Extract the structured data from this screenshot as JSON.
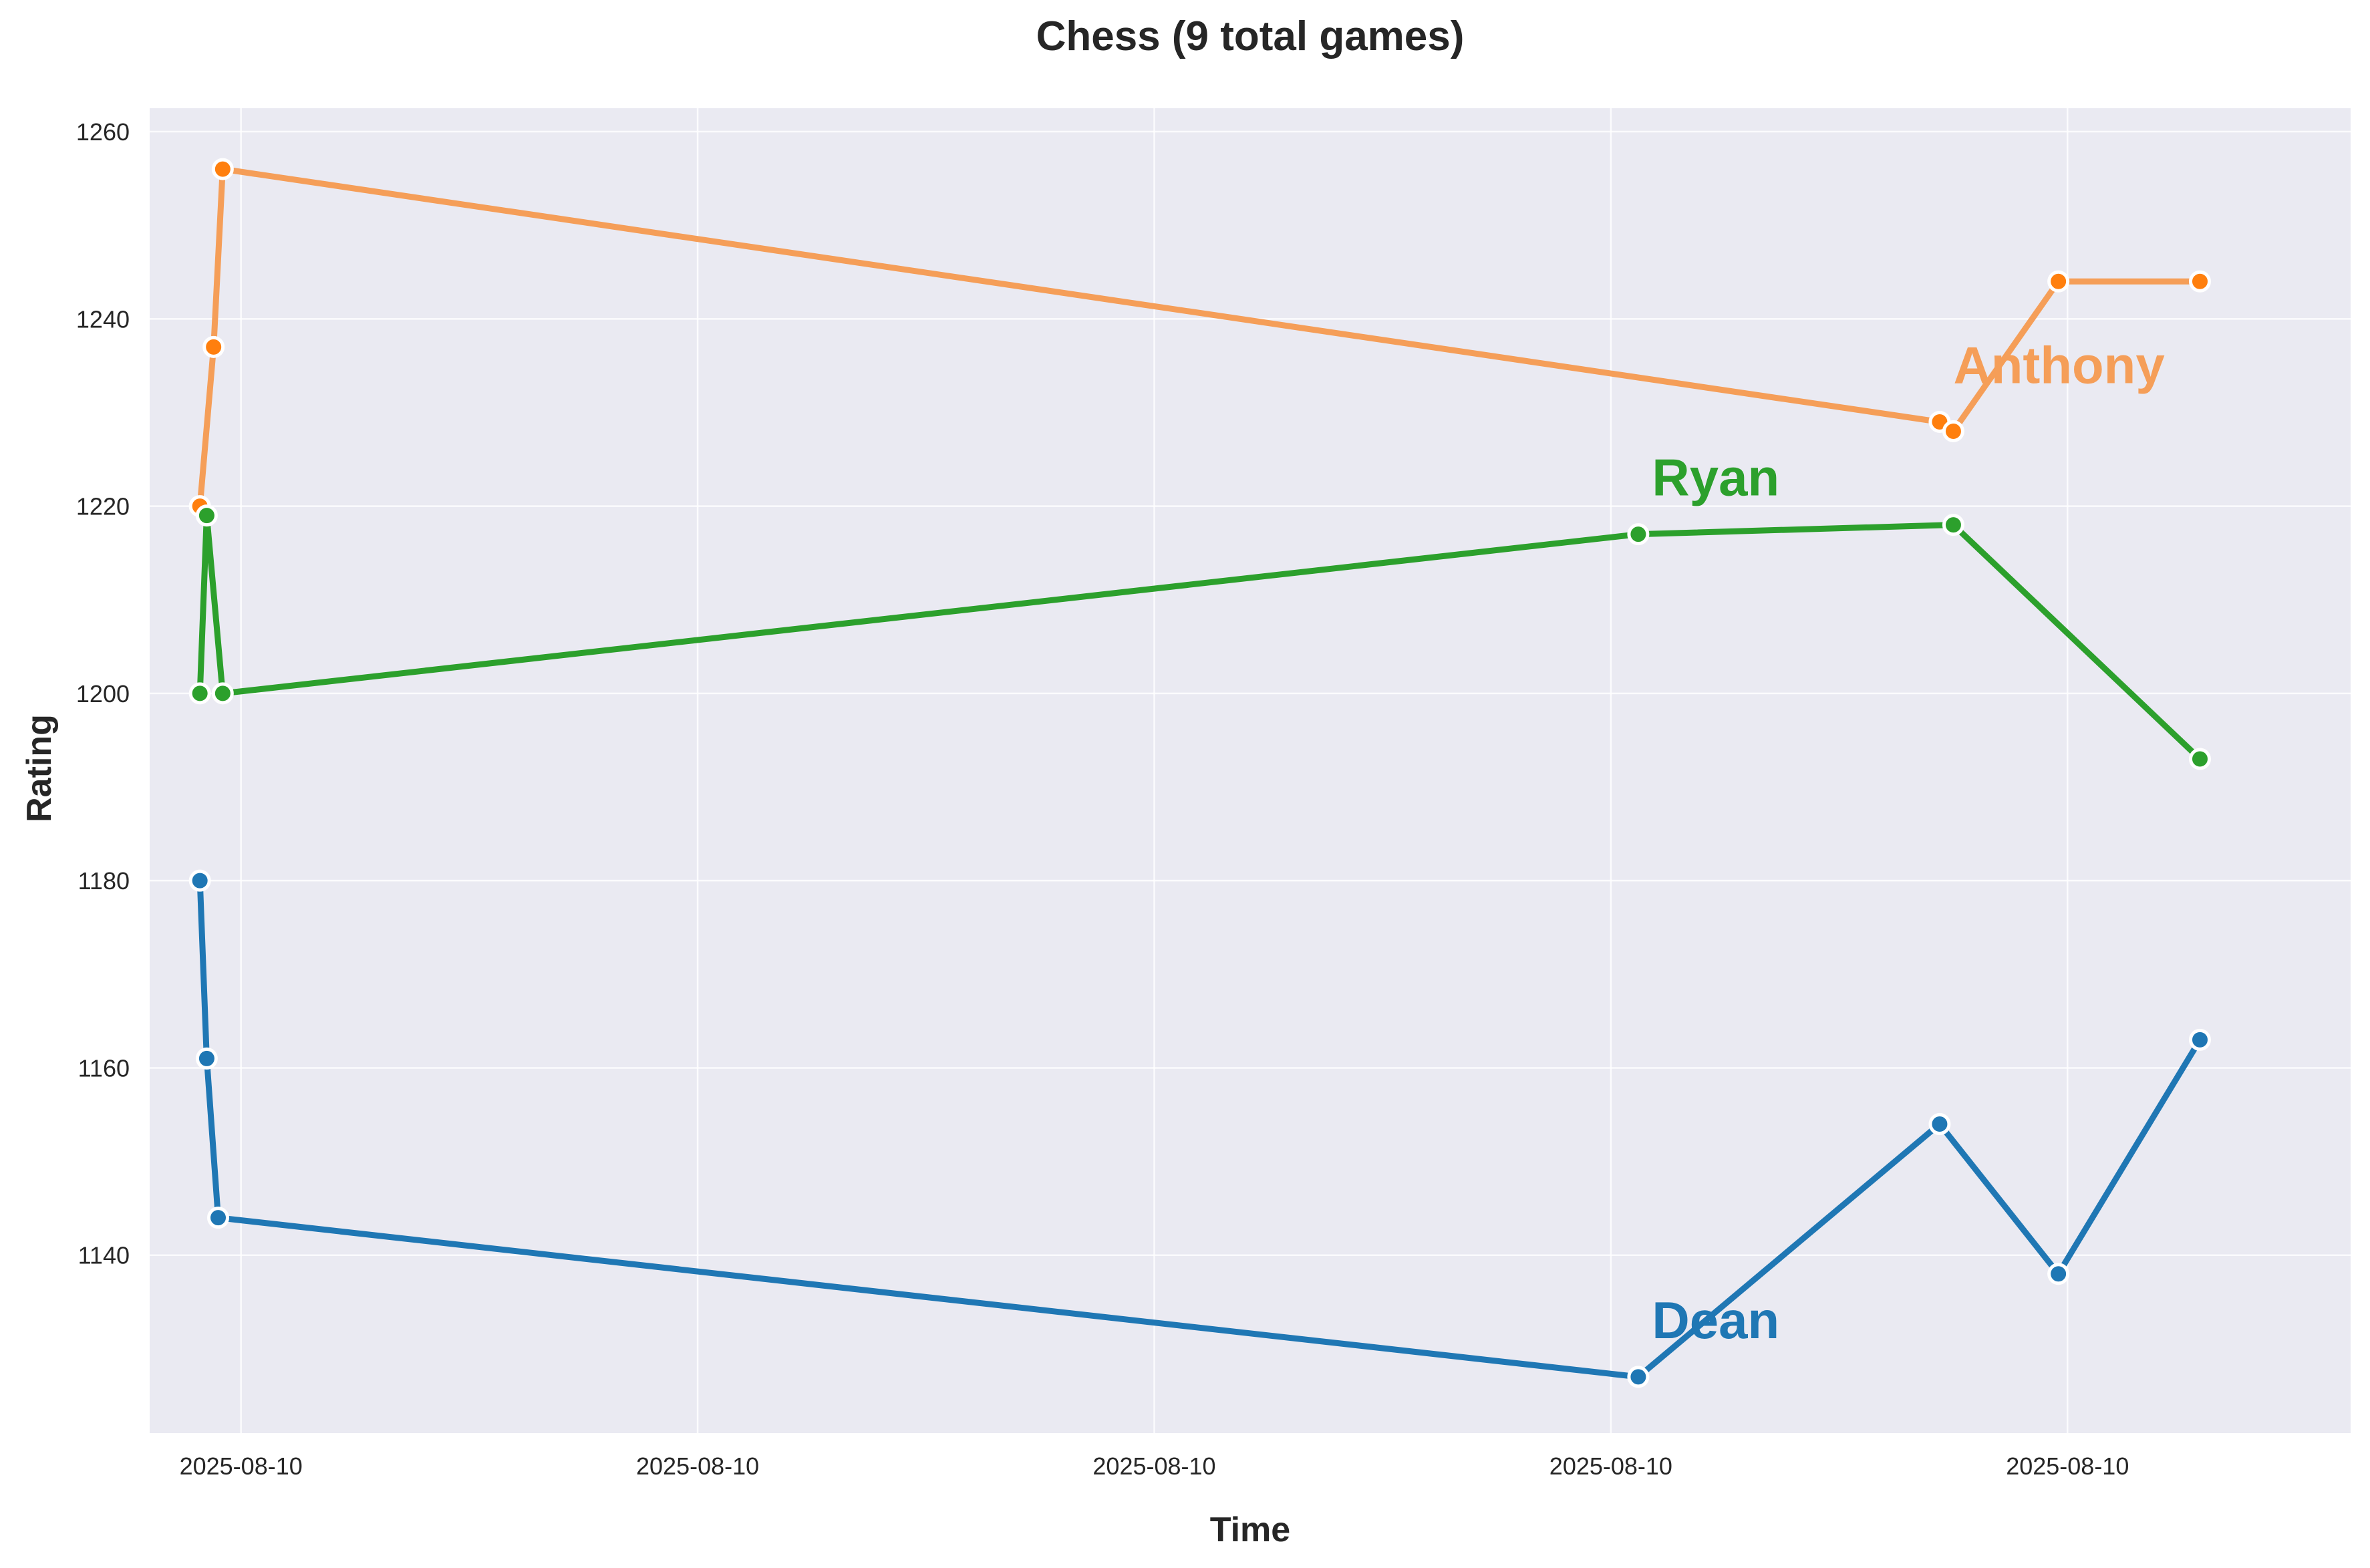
{
  "chart_data": {
    "type": "line",
    "title": "Chess (9 total games)",
    "xlabel": "Time",
    "ylabel": "Rating",
    "x_tick_labels": [
      "2025-08-10",
      "2025-08-10",
      "2025-08-10",
      "2025-08-10",
      "2025-08-10"
    ],
    "y_ticks": [
      1140,
      1160,
      1180,
      1200,
      1220,
      1240,
      1260
    ],
    "ylim": [
      1121,
      1262.5
    ],
    "xlim": [
      -0.2,
      4.62
    ],
    "grid": true,
    "background": "#eaeaf2",
    "series": [
      {
        "name": "Dean",
        "color": "#1f77b4",
        "x": [
          -0.09,
          -0.075,
          -0.05,
          3.06,
          3.72,
          3.98,
          4.29
        ],
        "y": [
          1180,
          1161,
          1144,
          1127,
          1154,
          1138,
          1163
        ]
      },
      {
        "name": "Anthony",
        "color": "#ff7f0e",
        "line_color": "#f59e58",
        "x": [
          -0.09,
          -0.06,
          -0.04,
          3.72,
          3.75,
          3.98,
          4.29
        ],
        "y": [
          1220,
          1237,
          1256,
          1229,
          1228,
          1244,
          1244
        ]
      },
      {
        "name": "Ryan",
        "color": "#2ca02c",
        "x": [
          -0.09,
          -0.075,
          -0.04,
          3.06,
          3.75,
          4.29
        ],
        "y": [
          1200,
          1219,
          1200,
          1217,
          1218,
          1193
        ]
      }
    ],
    "annotations": [
      {
        "text": "Anthony",
        "series": "Anthony",
        "x": 3.75,
        "y": 1235
      },
      {
        "text": "Ryan",
        "series": "Ryan",
        "x": 3.09,
        "y": 1223
      },
      {
        "text": "Dean",
        "series": "Dean",
        "x": 3.09,
        "y": 1133
      }
    ]
  }
}
